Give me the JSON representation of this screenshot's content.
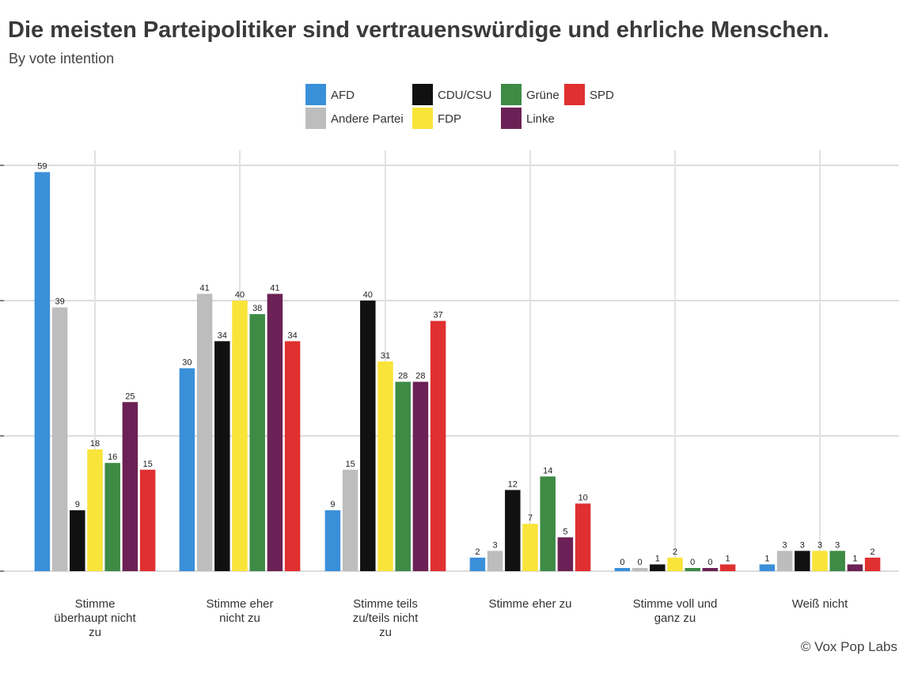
{
  "chart_data": {
    "type": "bar",
    "title": "Die meisten Parteipolitiker sind vertrauenswürdige und ehrliche Menschen.",
    "subtitle": "By vote intention",
    "caption": "© Vox Pop Labs",
    "xlabel": "",
    "ylabel": "",
    "ylim": [
      0,
      60
    ],
    "legend_position": "top",
    "grid": true,
    "categories": [
      [
        "Stimme",
        "überhaupt nicht",
        "zu"
      ],
      [
        "Stimme eher",
        "nicht zu"
      ],
      [
        "Stimme teils",
        "zu/teils nicht",
        "zu"
      ],
      [
        "Stimme eher zu"
      ],
      [
        "Stimme voll und",
        "ganz zu"
      ],
      [
        "Weiß nicht"
      ]
    ],
    "series": [
      {
        "name": "AFD",
        "color": "#3a8fd9",
        "values": [
          59,
          30,
          9,
          2,
          0,
          1
        ]
      },
      {
        "name": "Andere Partei",
        "color": "#bdbdbd",
        "values": [
          39,
          41,
          15,
          3,
          0,
          3
        ]
      },
      {
        "name": "CDU/CSU",
        "color": "#111111",
        "values": [
          9,
          34,
          40,
          12,
          1,
          3
        ]
      },
      {
        "name": "FDP",
        "color": "#f9e43a",
        "values": [
          18,
          40,
          31,
          7,
          2,
          3
        ]
      },
      {
        "name": "Grüne",
        "color": "#3d8b45",
        "values": [
          16,
          38,
          28,
          14,
          0,
          3
        ]
      },
      {
        "name": "Linke",
        "color": "#6b2155",
        "values": [
          25,
          41,
          28,
          5,
          0,
          1
        ]
      },
      {
        "name": "SPD",
        "color": "#e03030",
        "values": [
          15,
          34,
          37,
          10,
          1,
          2
        ]
      }
    ],
    "legend_order": [
      "AFD",
      "CDU/CSU",
      "Grüne",
      "SPD",
      "Andere Partei",
      "FDP",
      "Linke"
    ]
  }
}
